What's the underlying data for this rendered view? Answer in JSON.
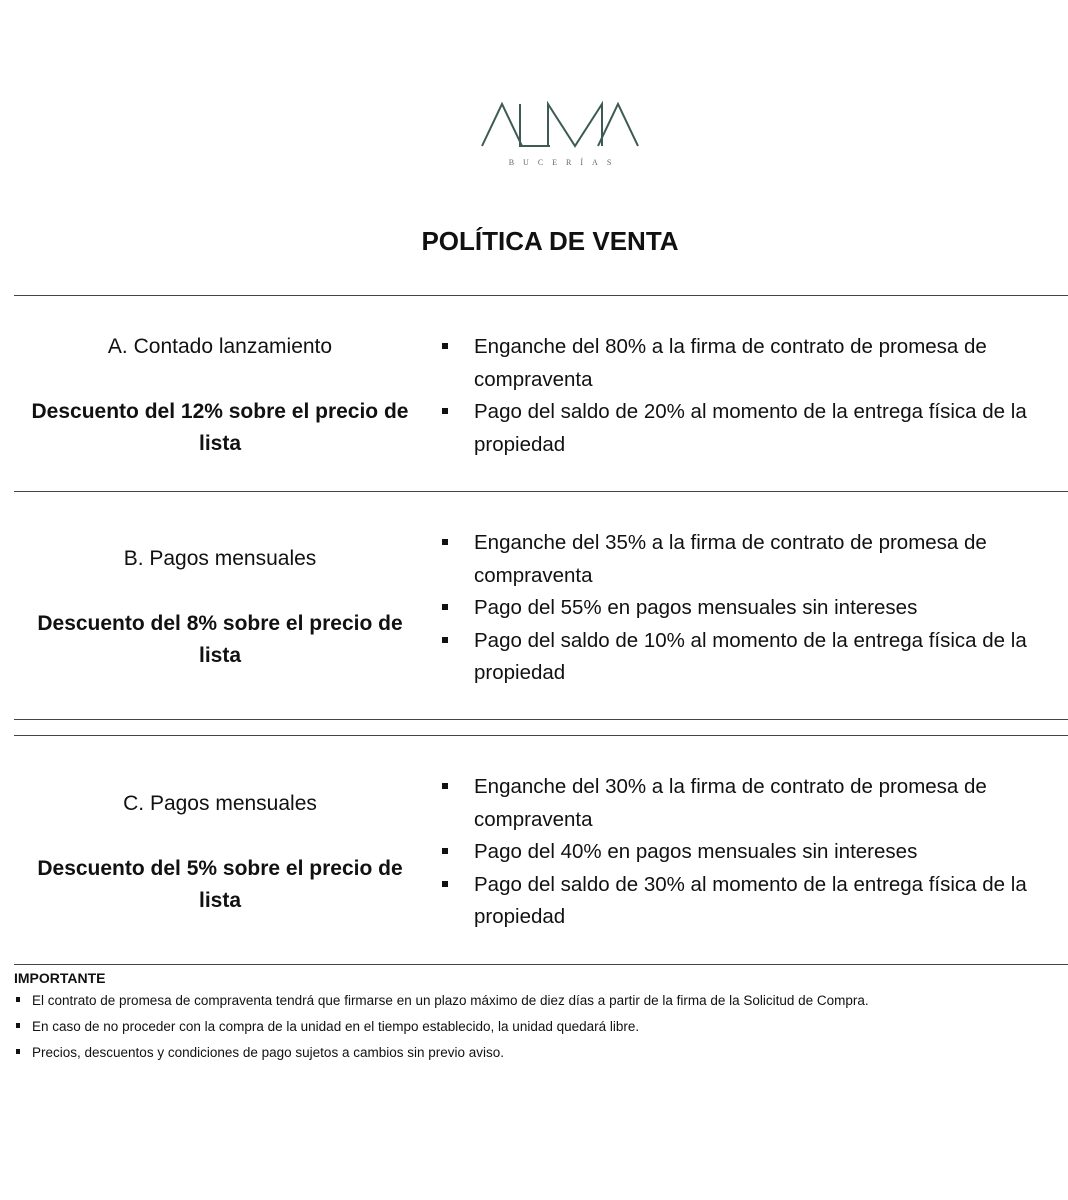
{
  "logo": {
    "name": "ALMA",
    "subtitle": "BUCERÍAS",
    "color": "#3d5a55"
  },
  "title": "POLÍTICA DE VENTA",
  "sections": [
    {
      "name": "A.  Contado lanzamiento",
      "discount": "Descuento del 12% sobre el precio de lista",
      "bullets": [
        "Enganche del 80% a la firma de contrato de promesa de compraventa",
        "Pago del saldo de 20% al momento de la entrega física de la propiedad"
      ]
    },
    {
      "name": "B.  Pagos mensuales",
      "discount": "Descuento del 8% sobre el precio de lista",
      "bullets": [
        "Enganche del 35% a la firma de contrato de promesa de compraventa",
        "Pago del 55% en pagos mensuales sin intereses",
        "Pago del saldo de 10% al momento de la entrega física de la propiedad"
      ]
    },
    {
      "name": "C.  Pagos mensuales",
      "discount": "Descuento del 5% sobre el precio de lista",
      "bullets": [
        "Enganche del 30% a la firma de contrato de promesa de compraventa",
        "Pago del 40% en pagos mensuales sin intereses",
        "Pago del saldo de 30% al momento de la entrega física de la propiedad"
      ]
    }
  ],
  "important": {
    "heading": "IMPORTANTE",
    "items": [
      "El contrato de promesa de compraventa tendrá que firmarse en un plazo máximo de diez días a partir de la firma de la Solicitud de Compra.",
      "En caso de no proceder con la compra de la unidad en el tiempo establecido, la unidad quedará libre.",
      "Precios, descuentos y condiciones de pago sujetos a cambios sin previo aviso."
    ]
  }
}
